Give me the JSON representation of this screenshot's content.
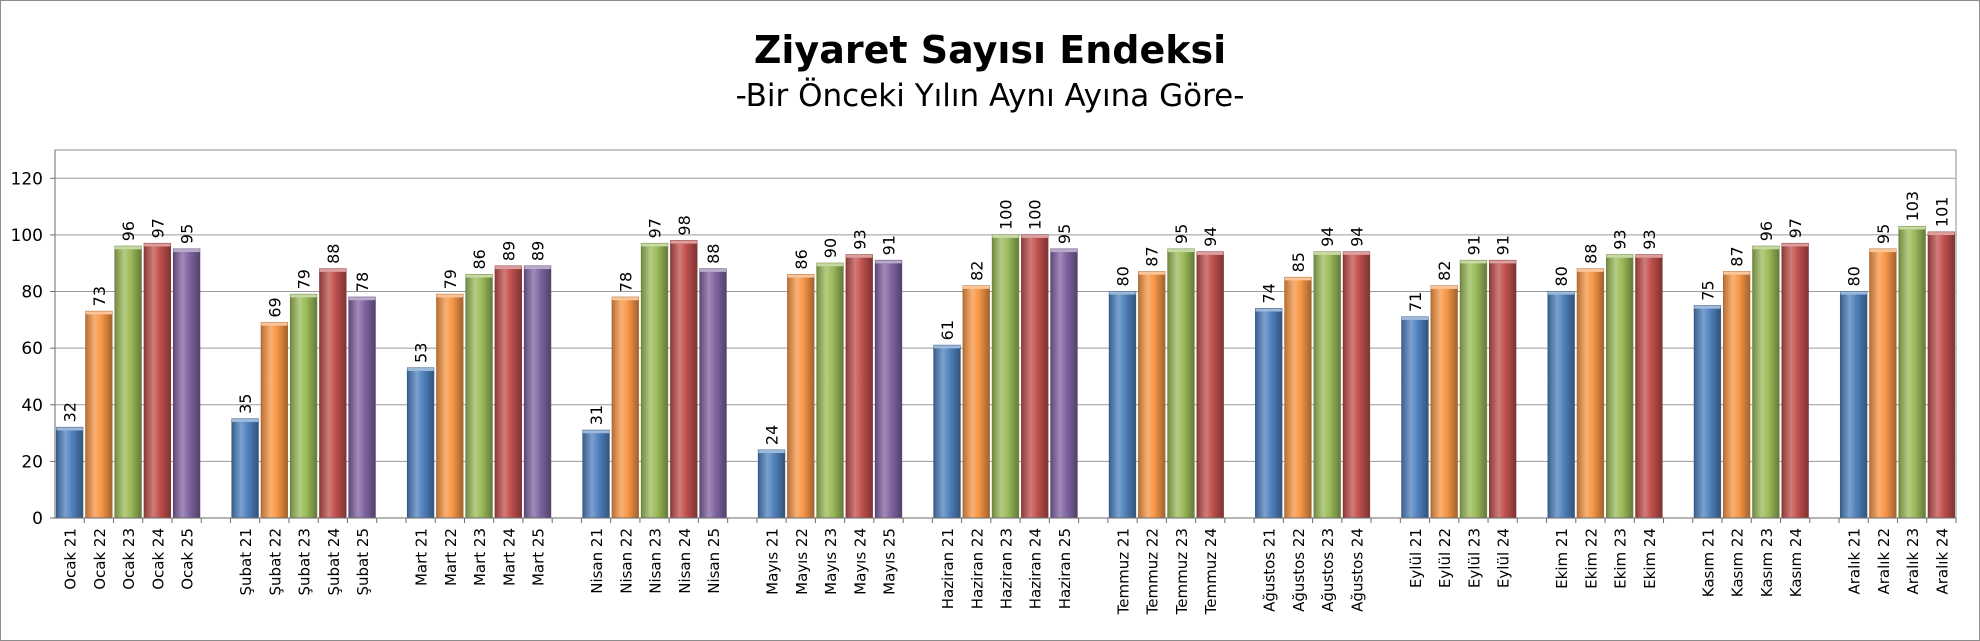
{
  "chart_data": {
    "type": "bar",
    "title": "Ziyaret Sayısı Endeksi",
    "subtitle": "-Bir Önceki Yılın Aynı Ayına Göre-",
    "xlabel": "",
    "ylabel": "",
    "ylim": [
      0,
      130
    ],
    "yticks": [
      0,
      20,
      40,
      60,
      80,
      100,
      120
    ],
    "grid": true,
    "legend": "none",
    "year_colors": {
      "21": "#4f81bd",
      "22": "#f79646",
      "23": "#9bbb59",
      "24": "#c0504d",
      "25": "#8064a2"
    },
    "groups": [
      {
        "month": "Ocak",
        "bars": [
          {
            "label": "Ocak 21",
            "year": "21",
            "value": 32
          },
          {
            "label": "Ocak 22",
            "year": "22",
            "value": 73
          },
          {
            "label": "Ocak 23",
            "year": "23",
            "value": 96
          },
          {
            "label": "Ocak 24",
            "year": "24",
            "value": 97
          },
          {
            "label": "Ocak 25",
            "year": "25",
            "value": 95
          }
        ]
      },
      {
        "month": "Şubat",
        "bars": [
          {
            "label": "Şubat 21",
            "year": "21",
            "value": 35
          },
          {
            "label": "Şubat 22",
            "year": "22",
            "value": 69
          },
          {
            "label": "Şubat 23",
            "year": "23",
            "value": 79
          },
          {
            "label": "Şubat 24",
            "year": "24",
            "value": 88
          },
          {
            "label": "Şubat 25",
            "year": "25",
            "value": 78
          }
        ]
      },
      {
        "month": "Mart",
        "bars": [
          {
            "label": "Mart 21",
            "year": "21",
            "value": 53
          },
          {
            "label": "Mart 22",
            "year": "22",
            "value": 79
          },
          {
            "label": "Mart 23",
            "year": "23",
            "value": 86
          },
          {
            "label": "Mart 24",
            "year": "24",
            "value": 89
          },
          {
            "label": "Mart 25",
            "year": "25",
            "value": 89
          }
        ]
      },
      {
        "month": "Nisan",
        "bars": [
          {
            "label": "Nisan 21",
            "year": "21",
            "value": 31
          },
          {
            "label": "Nisan 22",
            "year": "22",
            "value": 78
          },
          {
            "label": "Nisan 23",
            "year": "23",
            "value": 97
          },
          {
            "label": "Nisan 24",
            "year": "24",
            "value": 98
          },
          {
            "label": "Nisan 25",
            "year": "25",
            "value": 88
          }
        ]
      },
      {
        "month": "Mayıs",
        "bars": [
          {
            "label": "Mayıs 21",
            "year": "21",
            "value": 24
          },
          {
            "label": "Mayıs 22",
            "year": "22",
            "value": 86
          },
          {
            "label": "Mayıs 23",
            "year": "23",
            "value": 90
          },
          {
            "label": "Mayıs 24",
            "year": "24",
            "value": 93
          },
          {
            "label": "Mayıs 25",
            "year": "25",
            "value": 91
          }
        ]
      },
      {
        "month": "Haziran",
        "bars": [
          {
            "label": "Haziran 21",
            "year": "21",
            "value": 61
          },
          {
            "label": "Haziran 22",
            "year": "22",
            "value": 82
          },
          {
            "label": "Haziran 23",
            "year": "23",
            "value": 100
          },
          {
            "label": "Haziran 24",
            "year": "24",
            "value": 100
          },
          {
            "label": "Haziran 25",
            "year": "25",
            "value": 95
          }
        ]
      },
      {
        "month": "Temmuz",
        "bars": [
          {
            "label": "Temmuz 21",
            "year": "21",
            "value": 80
          },
          {
            "label": "Temmuz 22",
            "year": "22",
            "value": 87
          },
          {
            "label": "Temmuz 23",
            "year": "23",
            "value": 95
          },
          {
            "label": "Temmuz 24",
            "year": "24",
            "value": 94
          }
        ]
      },
      {
        "month": "Ağustos",
        "bars": [
          {
            "label": "Ağustos 21",
            "year": "21",
            "value": 74
          },
          {
            "label": "Ağustos 22",
            "year": "22",
            "value": 85
          },
          {
            "label": "Ağustos 23",
            "year": "23",
            "value": 94
          },
          {
            "label": "Ağustos 24",
            "year": "24",
            "value": 94
          }
        ]
      },
      {
        "month": "Eylül",
        "bars": [
          {
            "label": "Eylül 21",
            "year": "21",
            "value": 71
          },
          {
            "label": "Eylül 22",
            "year": "22",
            "value": 82
          },
          {
            "label": "Eylül 23",
            "year": "23",
            "value": 91
          },
          {
            "label": "Eylül 24",
            "year": "24",
            "value": 91
          }
        ]
      },
      {
        "month": "Ekim",
        "bars": [
          {
            "label": "Ekim 21",
            "year": "21",
            "value": 80
          },
          {
            "label": "Ekim 22",
            "year": "22",
            "value": 88
          },
          {
            "label": "Ekim 23",
            "year": "23",
            "value": 93
          },
          {
            "label": "Ekim 24",
            "year": "24",
            "value": 93
          }
        ]
      },
      {
        "month": "Kasım",
        "bars": [
          {
            "label": "Kasım 21",
            "year": "21",
            "value": 75
          },
          {
            "label": "Kasım 22",
            "year": "22",
            "value": 87
          },
          {
            "label": "Kasım 23",
            "year": "23",
            "value": 96
          },
          {
            "label": "Kasım 24",
            "year": "24",
            "value": 97
          }
        ]
      },
      {
        "month": "Aralık",
        "bars": [
          {
            "label": "Aralık 21",
            "year": "21",
            "value": 80
          },
          {
            "label": "Aralık 22",
            "year": "22",
            "value": 95
          },
          {
            "label": "Aralık 23",
            "year": "23",
            "value": 103
          },
          {
            "label": "Aralık 24",
            "year": "24",
            "value": 101
          }
        ]
      }
    ]
  }
}
